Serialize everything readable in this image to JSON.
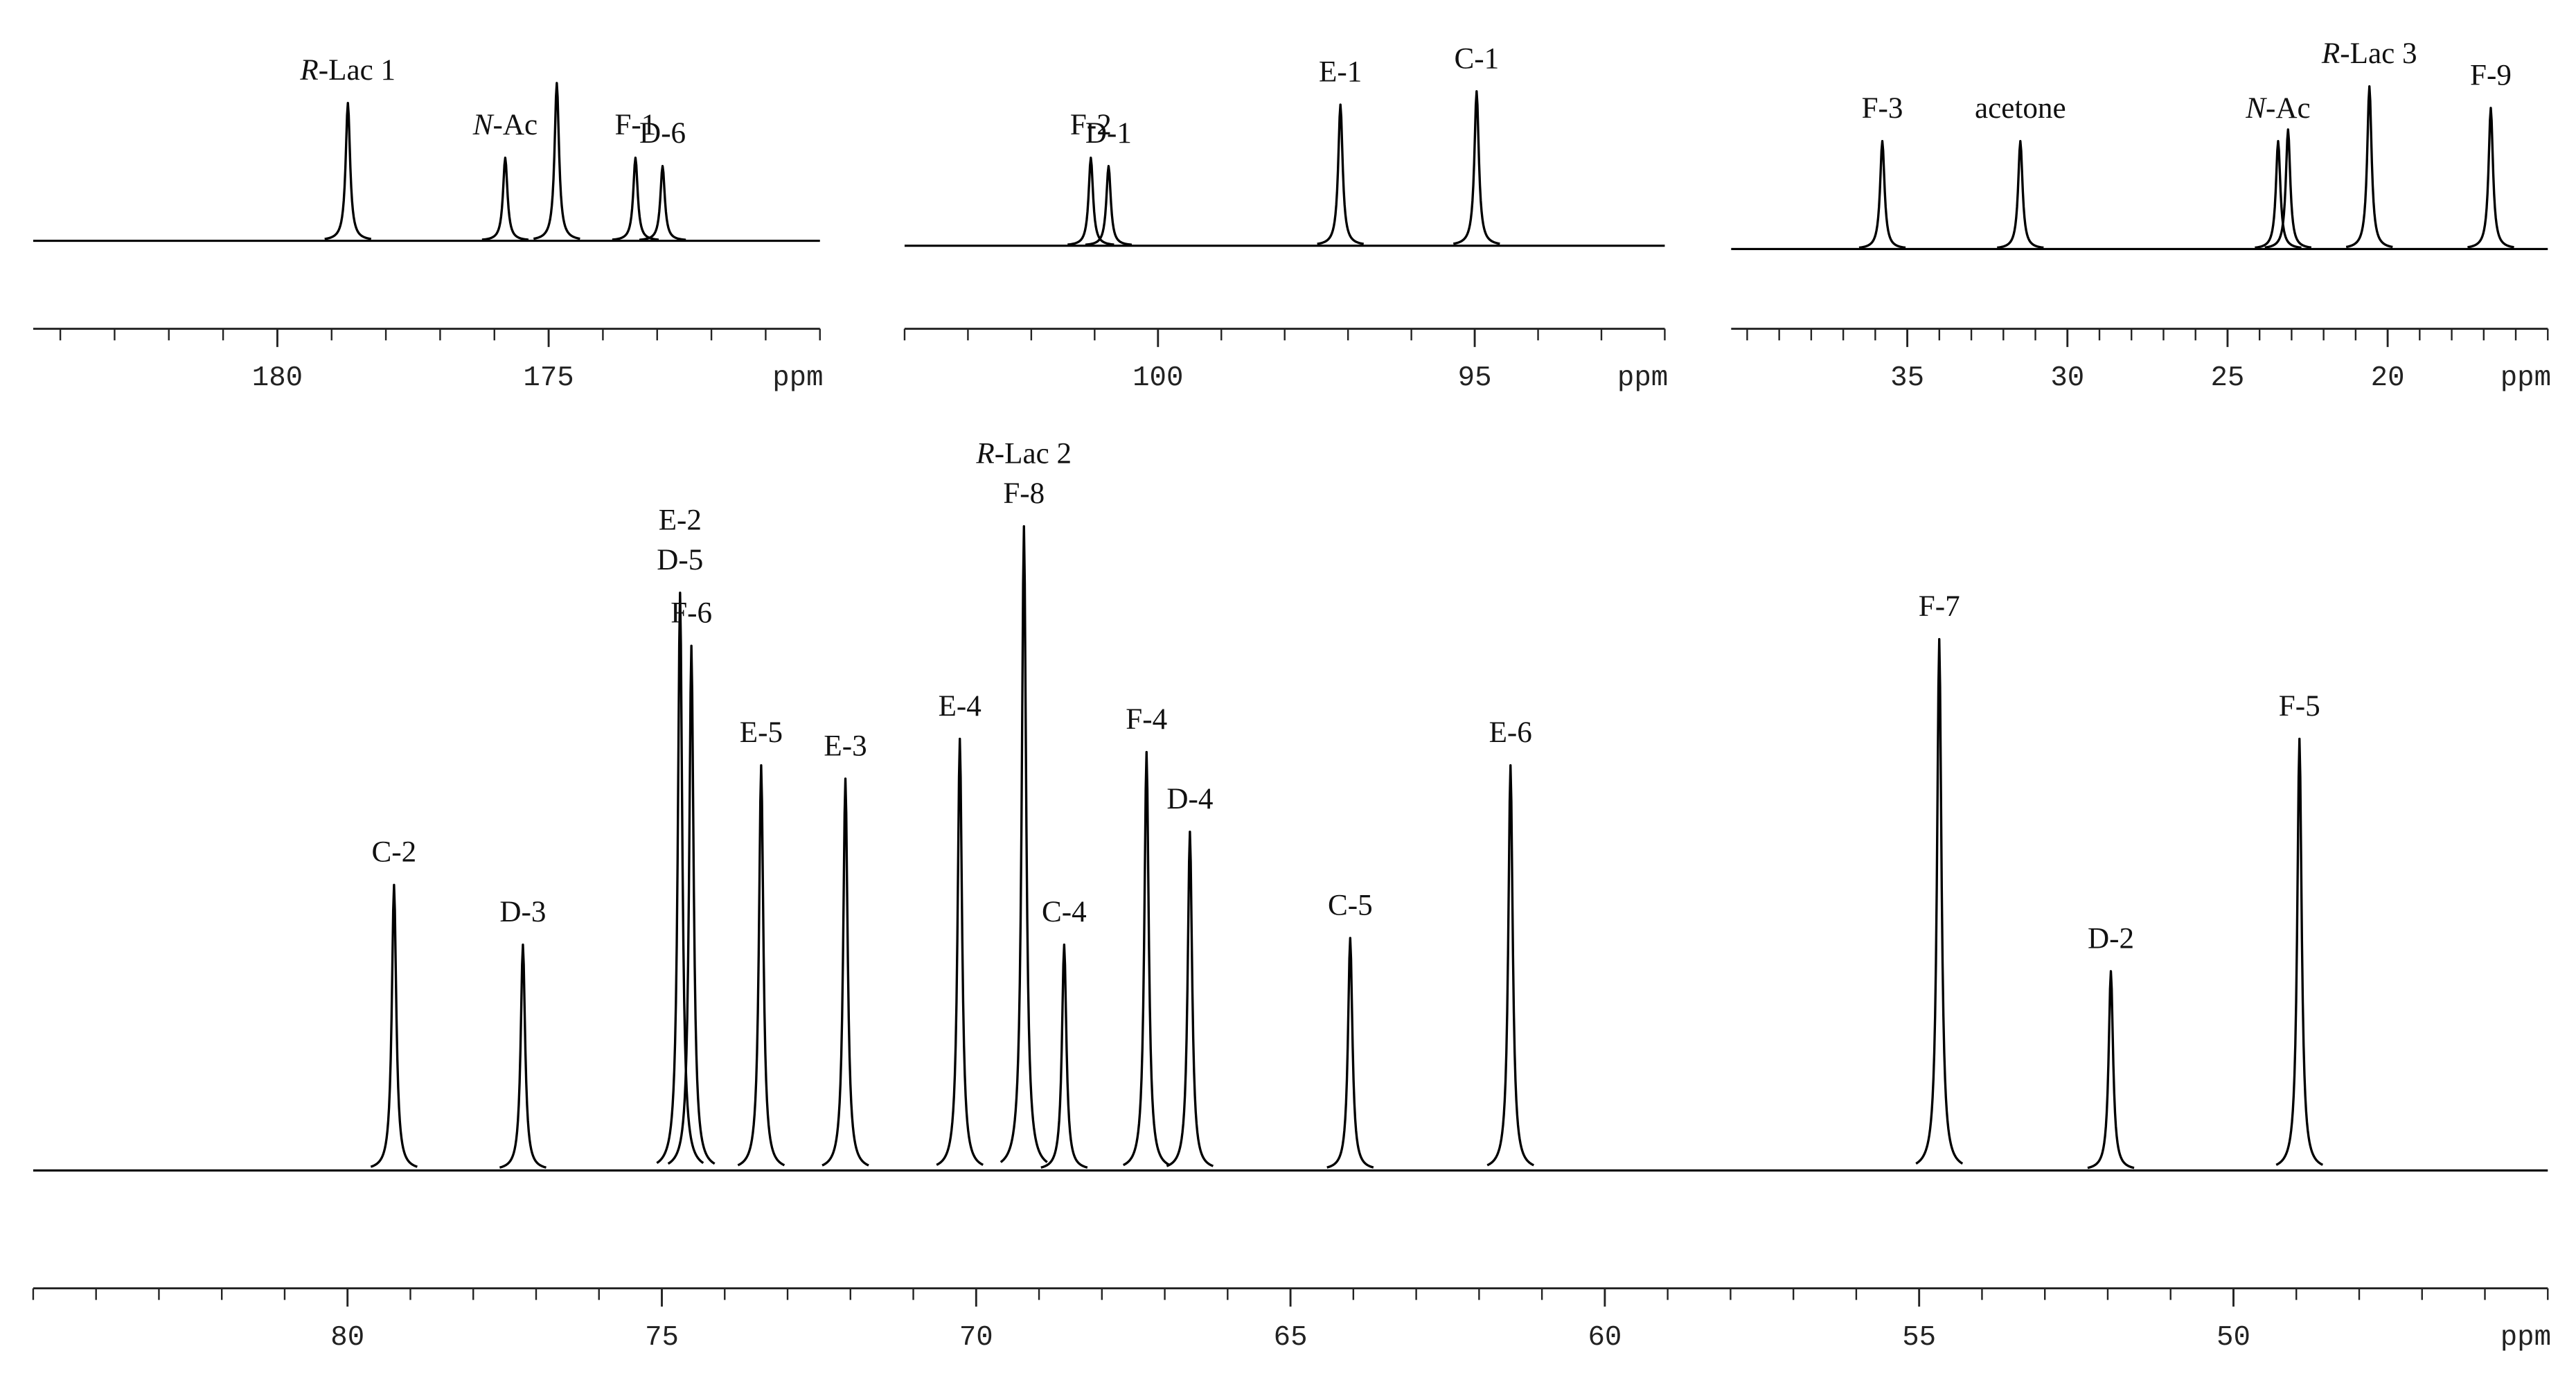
{
  "chart_data": [
    {
      "type": "spectrum",
      "xlabel": "ppm",
      "xlim": [
        184.5,
        170
      ],
      "xticks": [
        180,
        175
      ],
      "ylim": [
        0,
        100
      ],
      "color": "#000000",
      "peaks": [
        {
          "x": 178.7,
          "height": 83,
          "label": [
            "R-Lac 1"
          ]
        },
        {
          "x": 175.8,
          "height": 50,
          "label": [
            "N-Ac"
          ]
        },
        {
          "x": 174.85,
          "height": 95,
          "label": null
        },
        {
          "x": 173.4,
          "height": 50,
          "label": [
            "F-1"
          ]
        },
        {
          "x": 172.9,
          "height": 45,
          "label": [
            "D-6"
          ]
        }
      ]
    },
    {
      "type": "spectrum",
      "xlabel": "ppm",
      "xlim": [
        104,
        92
      ],
      "xticks": [
        100,
        95
      ],
      "ylim": [
        0,
        100
      ],
      "color": "#000000",
      "peaks": [
        {
          "x": 101.06,
          "height": 53,
          "label": [
            "F-2"
          ]
        },
        {
          "x": 100.78,
          "height": 48,
          "label": [
            "D-1"
          ]
        },
        {
          "x": 97.12,
          "height": 85,
          "label": [
            "E-1"
          ]
        },
        {
          "x": 94.97,
          "height": 93,
          "label": [
            "C-1"
          ]
        }
      ]
    },
    {
      "type": "spectrum",
      "xlabel": "ppm",
      "xlim": [
        40.5,
        15
      ],
      "xticks": [
        35,
        30,
        25,
        20
      ],
      "ylim": [
        0,
        100
      ],
      "color": "#000000",
      "peaks": [
        {
          "x": 35.78,
          "height": 65,
          "label": [
            "F-3"
          ]
        },
        {
          "x": 31.47,
          "height": 65,
          "label": [
            "acetone"
          ]
        },
        {
          "x": 23.42,
          "height": 65,
          "label": [
            "N-Ac"
          ]
        },
        {
          "x": 23.11,
          "height": 72,
          "label": null
        },
        {
          "x": 20.57,
          "height": 98,
          "label": [
            "R-Lac 3"
          ]
        },
        {
          "x": 16.78,
          "height": 85,
          "label": [
            "F-9"
          ]
        }
      ]
    },
    {
      "type": "spectrum",
      "xlabel": "ppm",
      "xlim": [
        85,
        45
      ],
      "xticks": [
        80,
        75,
        70,
        65,
        60,
        55,
        50
      ],
      "ylim": [
        0,
        100
      ],
      "color": "#000000",
      "peaks": [
        {
          "x": 79.26,
          "height": 43,
          "label": [
            "C-2"
          ]
        },
        {
          "x": 77.21,
          "height": 34,
          "label": [
            "D-3"
          ]
        },
        {
          "x": 74.71,
          "height": 87,
          "label": [
            "E-2",
            "D-5"
          ]
        },
        {
          "x": 74.53,
          "height": 79,
          "label": [
            "F-6"
          ]
        },
        {
          "x": 73.42,
          "height": 61,
          "label": [
            "E-5"
          ]
        },
        {
          "x": 72.08,
          "height": 59,
          "label": [
            "E-3"
          ]
        },
        {
          "x": 70.26,
          "height": 65,
          "label": [
            "E-4"
          ]
        },
        {
          "x": 69.24,
          "height": 97,
          "label": [
            "R-Lac 2",
            "F-8"
          ]
        },
        {
          "x": 68.6,
          "height": 34,
          "label": [
            "C-4"
          ]
        },
        {
          "x": 67.29,
          "height": 63,
          "label": [
            "F-4"
          ]
        },
        {
          "x": 66.6,
          "height": 51,
          "label": [
            "D-4"
          ]
        },
        {
          "x": 64.05,
          "height": 35,
          "label": [
            "C-5"
          ]
        },
        {
          "x": 61.5,
          "height": 61,
          "label": [
            "E-6"
          ]
        },
        {
          "x": 54.68,
          "height": 80,
          "label": [
            "F-7"
          ]
        },
        {
          "x": 51.95,
          "height": 30,
          "label": [
            "D-2"
          ]
        },
        {
          "x": 48.95,
          "height": 65,
          "label": [
            "F-5"
          ]
        }
      ]
    }
  ]
}
